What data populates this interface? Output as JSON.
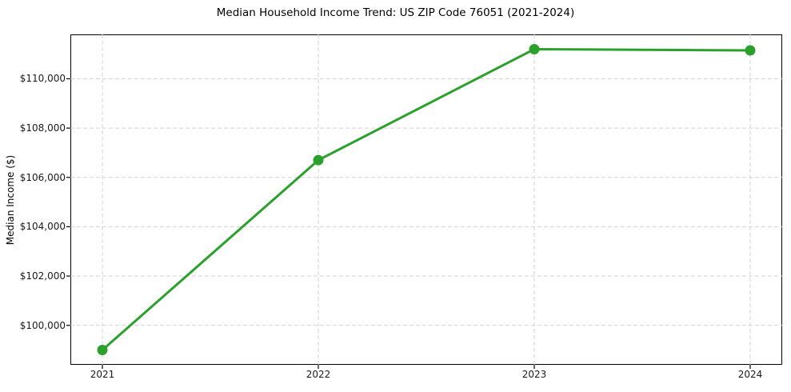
{
  "chart_data": {
    "type": "line",
    "title": "Median Household Income Trend: US ZIP Code 76051 (2021-2024)",
    "xlabel": "",
    "ylabel": "Median Income ($)",
    "categories": [
      "2021",
      "2022",
      "2023",
      "2024"
    ],
    "values": [
      99000,
      106700,
      111200,
      111150
    ],
    "ylim": [
      98400,
      111800
    ],
    "yticks": [
      100000,
      102000,
      104000,
      106000,
      108000,
      110000
    ],
    "ytick_labels": [
      "$100,000",
      "$102,000",
      "$104,000",
      "$106,000",
      "$108,000",
      "$110,000"
    ],
    "grid": "both-dashed",
    "legend": "none",
    "colors": {
      "line": "#2ca02c",
      "marker": "#2ca02c",
      "grid": "#d3d3d3",
      "axis": "#000000",
      "text": "#1a1a1a",
      "background": "#ffffff"
    }
  }
}
